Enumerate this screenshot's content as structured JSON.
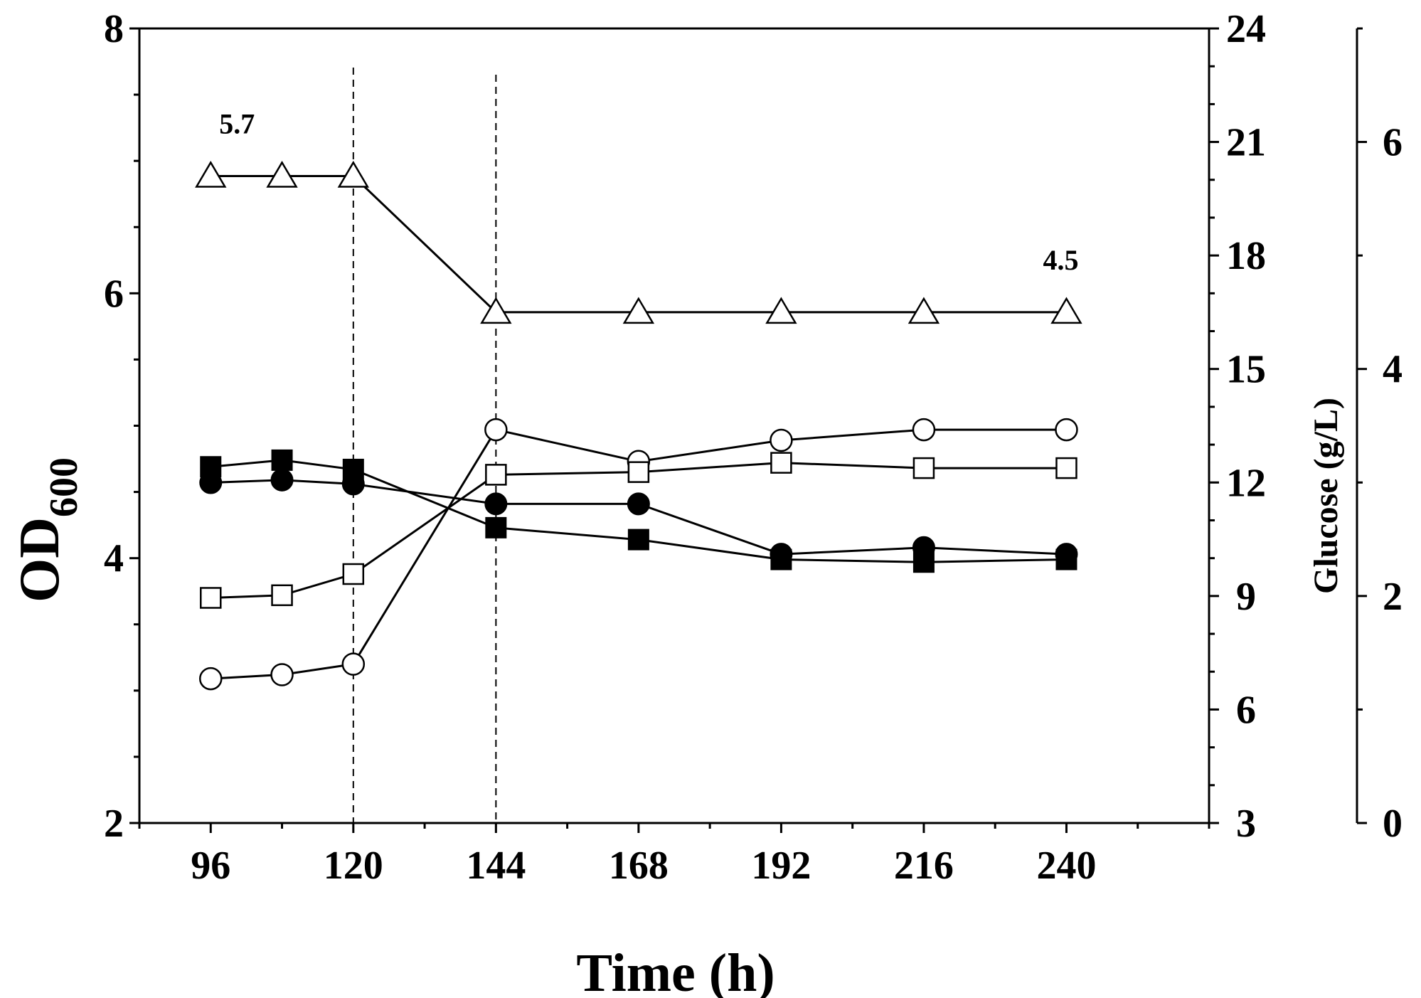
{
  "chart_data": {
    "type": "line",
    "x_axis": {
      "label": "Time (h)",
      "range": [
        84,
        264
      ],
      "ticks": [
        96,
        120,
        144,
        168,
        192,
        216,
        240
      ]
    },
    "y_axis_left": {
      "label_main": "OD",
      "label_sub": "600",
      "range": [
        2,
        8
      ],
      "ticks": [
        2,
        4,
        6,
        8
      ]
    },
    "y_axis_right1": {
      "label": "Glucose (g/L)",
      "range": [
        3,
        24
      ],
      "ticks": [
        3,
        6,
        9,
        12,
        15,
        18,
        21,
        24
      ]
    },
    "y_axis_right2": {
      "label": "",
      "range": [
        0,
        7
      ],
      "ticks": [
        0,
        2,
        4,
        6
      ]
    },
    "x": [
      96,
      108,
      120,
      144,
      168,
      192,
      216,
      240
    ],
    "series": [
      {
        "name": "open triangle",
        "marker": "triangle-open",
        "axis": "right2",
        "values": [
          5.7,
          5.7,
          5.7,
          4.5,
          4.5,
          4.5,
          4.5,
          4.5
        ]
      },
      {
        "name": "open circle",
        "marker": "circle-open",
        "axis": "left",
        "values": [
          3.09,
          3.12,
          3.2,
          4.97,
          4.73,
          4.89,
          4.97,
          4.97
        ]
      },
      {
        "name": "open square",
        "marker": "square-open",
        "axis": "left",
        "values": [
          3.7,
          3.72,
          3.88,
          4.63,
          4.65,
          4.72,
          4.68,
          4.68
        ]
      },
      {
        "name": "filled square",
        "marker": "square-filled",
        "axis": "left",
        "values": [
          4.69,
          4.74,
          4.67,
          4.23,
          4.14,
          3.99,
          3.97,
          3.99
        ]
      },
      {
        "name": "filled circle",
        "marker": "circle-filled",
        "axis": "left",
        "values": [
          4.57,
          4.59,
          4.56,
          4.41,
          4.41,
          4.03,
          4.08,
          4.03
        ]
      }
    ],
    "vertical_reference_lines": [
      120,
      144
    ],
    "annotations": [
      {
        "text": "5.7",
        "x": 96,
        "value": 5.7,
        "axis": "right2"
      },
      {
        "text": "4.5",
        "x": 240,
        "value": 4.5,
        "axis": "right2"
      }
    ]
  }
}
